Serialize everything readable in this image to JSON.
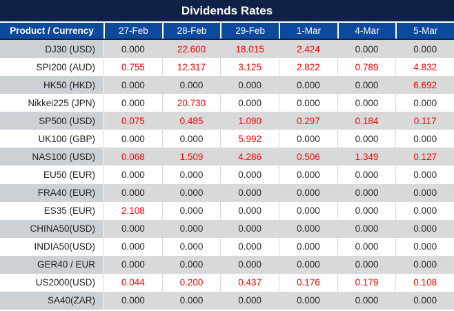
{
  "chart_data": {
    "type": "table",
    "title": "Dividends Rates",
    "product_header": "Product / Currency",
    "date_columns": [
      "27-Feb",
      "28-Feb",
      "29-Feb",
      "1-Mar",
      "4-Mar",
      "5-Mar"
    ],
    "rows": [
      {
        "product": "DJ30 (USD)",
        "values": [
          "0.000",
          "22.600",
          "18.015",
          "2.424",
          "0.000",
          "0.000"
        ]
      },
      {
        "product": "SPI200 (AUD)",
        "values": [
          "0.755",
          "12.317",
          "3.125",
          "2.822",
          "0.789",
          "4.832"
        ]
      },
      {
        "product": "HK50 (HKD)",
        "values": [
          "0.000",
          "0.000",
          "0.000",
          "0.000",
          "0.000",
          "6.692"
        ]
      },
      {
        "product": "Nikkei225 (JPN)",
        "values": [
          "0.000",
          "20.730",
          "0.000",
          "0.000",
          "0.000",
          "0.000"
        ]
      },
      {
        "product": "SP500 (USD)",
        "values": [
          "0.075",
          "0.485",
          "1.090",
          "0.297",
          "0.184",
          "0.117"
        ]
      },
      {
        "product": "UK100 (GBP)",
        "values": [
          "0.000",
          "0.000",
          "5.992",
          "0.000",
          "0.000",
          "0.000"
        ]
      },
      {
        "product": "NAS100 (USD)",
        "values": [
          "0.068",
          "1.509",
          "4.286",
          "0.506",
          "1.349",
          "0.127"
        ]
      },
      {
        "product": "EU50 (EUR)",
        "values": [
          "0.000",
          "0.000",
          "0.000",
          "0.000",
          "0.000",
          "0.000"
        ]
      },
      {
        "product": "FRA40 (EUR)",
        "values": [
          "0.000",
          "0.000",
          "0.000",
          "0.000",
          "0.000",
          "0.000"
        ]
      },
      {
        "product": "ES35 (EUR)",
        "values": [
          "2.108",
          "0.000",
          "0.000",
          "0.000",
          "0.000",
          "0.000"
        ]
      },
      {
        "product": "CHINA50(USD)",
        "values": [
          "0.000",
          "0.000",
          "0.000",
          "0.000",
          "0.000",
          "0.000"
        ]
      },
      {
        "product": "INDIA50(USD)",
        "values": [
          "0.000",
          "0.000",
          "0.000",
          "0.000",
          "0.000",
          "0.000"
        ]
      },
      {
        "product": "GER40 / EUR",
        "values": [
          "0.000",
          "0.000",
          "0.000",
          "0.000",
          "0.000",
          "0.000"
        ]
      },
      {
        "product": "US2000(USD)",
        "values": [
          "0.044",
          "0.200",
          "0.437",
          "0.176",
          "0.179",
          "0.108"
        ]
      },
      {
        "product": "SA40(ZAR)",
        "values": [
          "0.000",
          "0.000",
          "0.000",
          "0.000",
          "0.000",
          "0.000"
        ]
      }
    ],
    "highlight_rule": "non-zero values are shown in red"
  },
  "colors": {
    "title_bar": "#0f2145",
    "header_blue": "#0d4a9d",
    "header_text": "#ffffff",
    "row_gray_product": "#ccd1d6",
    "row_gray_value": "#d9d9d9",
    "row_white": "#ffffff",
    "value_black": "#262626",
    "value_red": "#fe0000"
  }
}
